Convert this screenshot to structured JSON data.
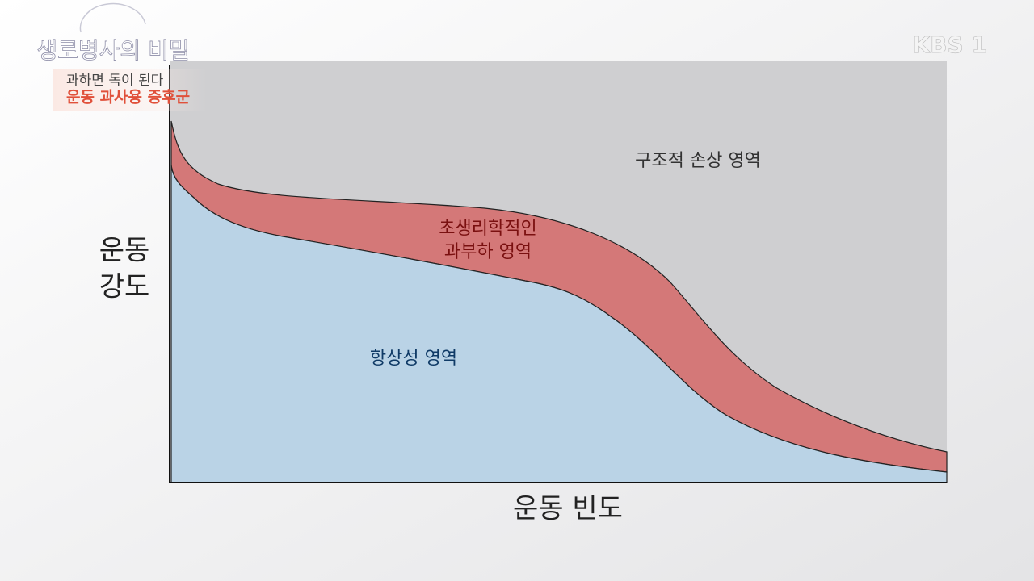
{
  "header": {
    "program": "생로병사의 비밀",
    "subtitle": "과하면 독이 된다",
    "topic": "운동 과사용 증후군",
    "channel": "KBS 1"
  },
  "diagram": {
    "y_axis_label": [
      "운동",
      "강도"
    ],
    "x_axis_label": "운동 빈도",
    "regions": [
      {
        "lines": [
          "구조적 손상 영역"
        ]
      },
      {
        "lines": [
          "초생리학적인",
          "과부하 영역"
        ]
      },
      {
        "lines": [
          "항상성 영역"
        ]
      }
    ]
  }
}
